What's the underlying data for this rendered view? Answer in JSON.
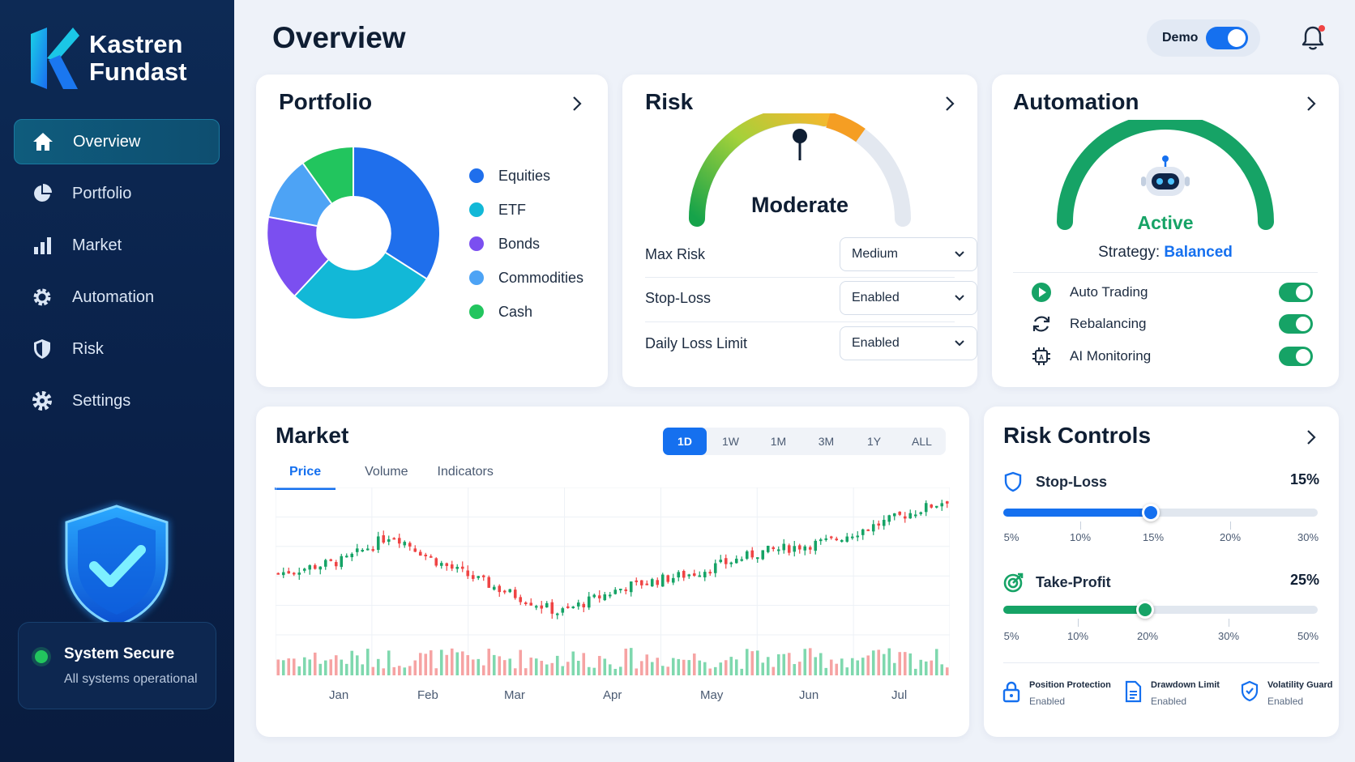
{
  "brand": {
    "line1": "Kastren",
    "line2": "Fundast"
  },
  "sidebar": {
    "items": [
      {
        "label": "Overview",
        "icon": "home-icon"
      },
      {
        "label": "Portfolio",
        "icon": "pie-chart-icon"
      },
      {
        "label": "Market",
        "icon": "bar-chart-icon"
      },
      {
        "label": "Automation",
        "icon": "gear-icon"
      },
      {
        "label": "Risk",
        "icon": "shield-icon"
      },
      {
        "label": "Settings",
        "icon": "settings-icon"
      }
    ],
    "status": {
      "title": "System Secure",
      "subtitle": "All systems operational"
    }
  },
  "header": {
    "title": "Overview",
    "demo_label": "Demo",
    "demo_on": true
  },
  "portfolio": {
    "title": "Portfolio",
    "legend": [
      {
        "label": "Equities",
        "color": "#1f6fec"
      },
      {
        "label": "ETF",
        "color": "#12b8d7"
      },
      {
        "label": "Bonds",
        "color": "#7b4ff0"
      },
      {
        "label": "Commodities",
        "color": "#4da3f5"
      },
      {
        "label": "Cash",
        "color": "#22c55e"
      }
    ]
  },
  "risk": {
    "title": "Risk",
    "gauge_label": "Moderate",
    "rows": [
      {
        "label": "Max Risk",
        "value": "Medium"
      },
      {
        "label": "Stop-Loss",
        "value": "Enabled"
      },
      {
        "label": "Daily Loss Limit",
        "value": "Enabled"
      }
    ]
  },
  "automation": {
    "title": "Automation",
    "status": "Active",
    "strategy_label": "Strategy:",
    "strategy_value": "Balanced",
    "rows": [
      {
        "label": "Auto Trading",
        "icon": "play-icon",
        "on": true
      },
      {
        "label": "Rebalancing",
        "icon": "refresh-icon",
        "on": true
      },
      {
        "label": "AI Monitoring",
        "icon": "chip-icon",
        "on": true
      }
    ]
  },
  "market": {
    "title": "Market",
    "ranges": [
      "1D",
      "1W",
      "1M",
      "3M",
      "1Y",
      "ALL"
    ],
    "active_range": "1D",
    "tabs": [
      "Price",
      "Volume",
      "Indicators"
    ],
    "active_tab": "Price",
    "months": [
      "Jan",
      "Feb",
      "Mar",
      "Apr",
      "May",
      "Jun",
      "Jul"
    ]
  },
  "risk_controls": {
    "title": "Risk Controls",
    "stop_loss": {
      "label": "Stop-Loss",
      "value": "15%",
      "ticks": [
        "5%",
        "10%",
        "15%",
        "20%",
        "30%"
      ],
      "level": 0.47,
      "color": "#1570ef"
    },
    "take_profit": {
      "label": "Take-Profit",
      "value": "25%",
      "ticks": [
        "5%",
        "10%",
        "20%",
        "30%",
        "50%"
      ],
      "level": 0.45,
      "color": "#16a366"
    },
    "footer": [
      {
        "title": "Position Protection",
        "status": "Enabled",
        "icon": "lock-icon"
      },
      {
        "title": "Drawdown Limit",
        "status": "Enabled",
        "icon": "document-icon"
      },
      {
        "title": "Volatility Guard",
        "status": "Enabled",
        "icon": "shield-check-icon"
      }
    ]
  }
}
